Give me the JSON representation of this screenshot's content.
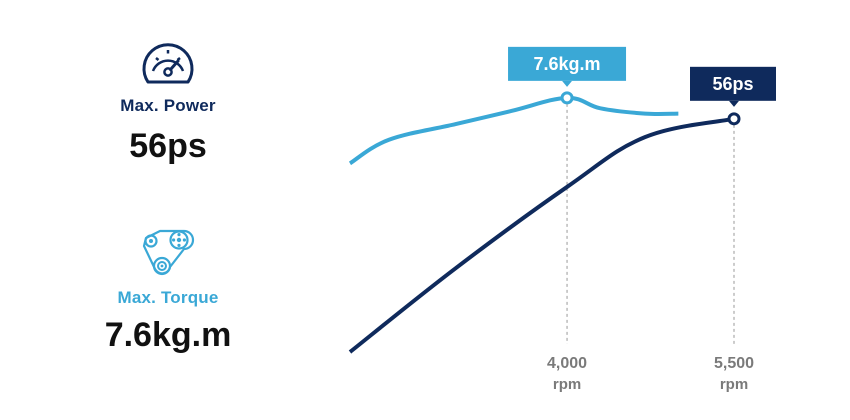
{
  "specs": {
    "power": {
      "label": "Max. Power",
      "value": "56ps",
      "icon": "speedometer-icon"
    },
    "torque": {
      "label": "Max. Torque",
      "value": "7.6kg.m",
      "icon": "pulley-belt-icon"
    }
  },
  "colors": {
    "navy": "#0f2a5c",
    "sky": "#3aa8d6",
    "guide": "#9a9a9a",
    "tick": "#7a7a7a"
  },
  "chart_data": {
    "type": "line",
    "xlabel": "",
    "ylabel": "",
    "xticks": [
      {
        "value": "4,000",
        "unit": "rpm"
      },
      {
        "value": "5,500",
        "unit": "rpm"
      }
    ],
    "series": [
      {
        "id": "torque",
        "color": "#3aa8d6",
        "points": [
          [
            2050,
            0.72
          ],
          [
            2400,
            0.81
          ],
          [
            3000,
            0.87
          ],
          [
            3500,
            0.92
          ],
          [
            4000,
            0.97
          ],
          [
            4300,
            0.93
          ],
          [
            4700,
            0.91
          ],
          [
            5000,
            0.91
          ]
        ],
        "peak": {
          "x": 4000,
          "label": "7.6kg.m"
        }
      },
      {
        "id": "power",
        "color": "#0f2a5c",
        "points": [
          [
            2050,
            0.0
          ],
          [
            3000,
            0.32
          ],
          [
            4000,
            0.63
          ],
          [
            4700,
            0.82
          ],
          [
            5500,
            0.89
          ]
        ],
        "peak": {
          "x": 5500,
          "label": "56ps"
        }
      }
    ]
  }
}
